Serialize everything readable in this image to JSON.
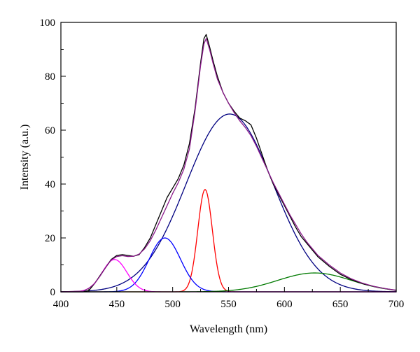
{
  "chart_data": {
    "type": "line",
    "title": "",
    "xlabel": "Wavelength (nm)",
    "ylabel": "Intensity (a.u.)",
    "xlim": [
      400,
      700
    ],
    "ylim": [
      0,
      100
    ],
    "x_ticks": [
      400,
      450,
      500,
      550,
      600,
      650,
      700
    ],
    "y_ticks": [
      0,
      20,
      40,
      60,
      80,
      100
    ],
    "x_tick_labels": [
      "400",
      "450",
      "500",
      "550",
      "600",
      "650",
      "700"
    ],
    "y_tick_labels": [
      "0",
      "20",
      "40",
      "60",
      "80",
      "100"
    ],
    "grid": false,
    "legend": "none",
    "series": [
      {
        "color": "#000000",
        "role": "measured",
        "points": [
          [
            400,
            0
          ],
          [
            420,
            0
          ],
          [
            425,
            0.5
          ],
          [
            430,
            3
          ],
          [
            435,
            6
          ],
          [
            440,
            9
          ],
          [
            445,
            12
          ],
          [
            450,
            13.5
          ],
          [
            455,
            13.8
          ],
          [
            460,
            13.5
          ],
          [
            465,
            13.2
          ],
          [
            470,
            13.8
          ],
          [
            475,
            16.5
          ],
          [
            480,
            20
          ],
          [
            485,
            25
          ],
          [
            490,
            30
          ],
          [
            495,
            35
          ],
          [
            500,
            38.5
          ],
          [
            505,
            42
          ],
          [
            510,
            47
          ],
          [
            515,
            55
          ],
          [
            520,
            68
          ],
          [
            525,
            85
          ],
          [
            528,
            94
          ],
          [
            530,
            95.5
          ],
          [
            533,
            91
          ],
          [
            536,
            86
          ],
          [
            540,
            80
          ],
          [
            545,
            74
          ],
          [
            550,
            70
          ],
          [
            555,
            67
          ],
          [
            560,
            64.5
          ],
          [
            565,
            63.5
          ],
          [
            570,
            62
          ],
          [
            575,
            57
          ],
          [
            580,
            51
          ],
          [
            585,
            45
          ],
          [
            590,
            40
          ],
          [
            595,
            36
          ],
          [
            600,
            32
          ],
          [
            605,
            28
          ],
          [
            610,
            24
          ],
          [
            615,
            20.5
          ],
          [
            620,
            18
          ],
          [
            625,
            15.5
          ],
          [
            630,
            13
          ],
          [
            640,
            9.5
          ],
          [
            650,
            6.5
          ],
          [
            660,
            4.5
          ],
          [
            670,
            3
          ],
          [
            680,
            2
          ],
          [
            690,
            1.2
          ],
          [
            700,
            0.5
          ]
        ]
      },
      {
        "color": "#8B1A8B",
        "role": "cumulative fit",
        "points": [
          [
            400,
            0
          ],
          [
            420,
            0.3
          ],
          [
            425,
            1.3
          ],
          [
            430,
            3
          ],
          [
            435,
            5.8
          ],
          [
            440,
            9
          ],
          [
            445,
            11.8
          ],
          [
            450,
            13.1
          ],
          [
            455,
            13.4
          ],
          [
            460,
            13.1
          ],
          [
            465,
            13.2
          ],
          [
            470,
            14
          ],
          [
            475,
            16
          ],
          [
            480,
            19
          ],
          [
            485,
            23
          ],
          [
            490,
            27.5
          ],
          [
            495,
            32
          ],
          [
            500,
            36.5
          ],
          [
            505,
            40.5
          ],
          [
            510,
            45.5
          ],
          [
            515,
            53
          ],
          [
            520,
            67
          ],
          [
            525,
            84
          ],
          [
            528,
            92
          ],
          [
            530,
            94
          ],
          [
            533,
            90
          ],
          [
            536,
            85
          ],
          [
            540,
            79
          ],
          [
            545,
            74
          ],
          [
            550,
            70
          ],
          [
            555,
            66.5
          ],
          [
            560,
            63.5
          ],
          [
            565,
            61
          ],
          [
            570,
            58
          ],
          [
            575,
            54
          ],
          [
            580,
            49.5
          ],
          [
            585,
            45
          ],
          [
            590,
            40.5
          ],
          [
            595,
            36.5
          ],
          [
            600,
            32.5
          ],
          [
            605,
            28.5
          ],
          [
            610,
            25
          ],
          [
            615,
            21.5
          ],
          [
            620,
            18.5
          ],
          [
            625,
            16
          ],
          [
            630,
            13.5
          ],
          [
            640,
            10
          ],
          [
            650,
            7
          ],
          [
            660,
            4.8
          ],
          [
            670,
            3.2
          ],
          [
            680,
            2
          ],
          [
            690,
            1.2
          ],
          [
            700,
            0.6
          ]
        ]
      },
      {
        "color": "#FF00FF",
        "role": "gaussian component",
        "center": 448,
        "amplitude": 12,
        "sigma": 11
      },
      {
        "color": "#0000FF",
        "role": "gaussian component",
        "center": 493,
        "amplitude": 20,
        "sigma": 14
      },
      {
        "color": "#FF0000",
        "role": "gaussian component",
        "center": 529,
        "amplitude": 38,
        "sigma": 6.5
      },
      {
        "color": "#000080",
        "role": "gaussian component",
        "center": 551,
        "amplitude": 66,
        "sigma": 39
      },
      {
        "color": "#007A00",
        "role": "gaussian component",
        "center": 627,
        "amplitude": 7,
        "sigma": 33
      }
    ]
  }
}
